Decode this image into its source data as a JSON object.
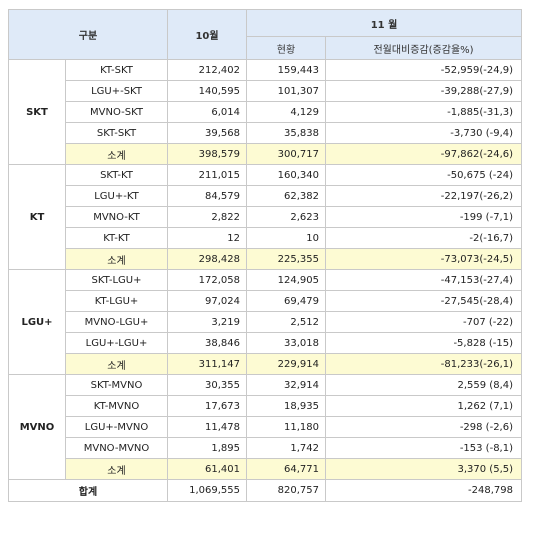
{
  "header": {
    "category": "구분",
    "october": "10월",
    "november": "11 월",
    "current": "현황",
    "change": "전월대비증감(증감율%)"
  },
  "groups": [
    {
      "name": "SKT",
      "rows": [
        {
          "label": "KT-SKT",
          "oct": "212,402",
          "nov": "159,443",
          "change": "-52,959(-24,9)"
        },
        {
          "label": "LGU+-SKT",
          "oct": "140,595",
          "nov": "101,307",
          "change": "-39,288(-27,9)"
        },
        {
          "label": "MVNO-SKT",
          "oct": "6,014",
          "nov": "4,129",
          "change": "-1,885(-31,3)"
        },
        {
          "label": "SKT-SKT",
          "oct": "39,568",
          "nov": "35,838",
          "change": "-3,730 (-9,4)"
        }
      ],
      "subtotal": {
        "label": "소계",
        "oct": "398,579",
        "nov": "300,717",
        "change": "-97,862(-24,6)"
      }
    },
    {
      "name": "KT",
      "rows": [
        {
          "label": "SKT-KT",
          "oct": "211,015",
          "nov": "160,340",
          "change": "-50,675 (-24)"
        },
        {
          "label": "LGU+-KT",
          "oct": "84,579",
          "nov": "62,382",
          "change": "-22,197(-26,2)"
        },
        {
          "label": "MVNO-KT",
          "oct": "2,822",
          "nov": "2,623",
          "change": "-199 (-7,1)"
        },
        {
          "label": "KT-KT",
          "oct": "12",
          "nov": "10",
          "change": "-2(-16,7)"
        }
      ],
      "subtotal": {
        "label": "소계",
        "oct": "298,428",
        "nov": "225,355",
        "change": "-73,073(-24,5)"
      }
    },
    {
      "name": "LGU+",
      "rows": [
        {
          "label": "SKT-LGU+",
          "oct": "172,058",
          "nov": "124,905",
          "change": "-47,153(-27,4)"
        },
        {
          "label": "KT-LGU+",
          "oct": "97,024",
          "nov": "69,479",
          "change": "-27,545(-28,4)"
        },
        {
          "label": "MVNO-LGU+",
          "oct": "3,219",
          "nov": "2,512",
          "change": "-707 (-22)"
        },
        {
          "label": "LGU+-LGU+",
          "oct": "38,846",
          "nov": "33,018",
          "change": "-5,828 (-15)"
        }
      ],
      "subtotal": {
        "label": "소계",
        "oct": "311,147",
        "nov": "229,914",
        "change": "-81,233(-26,1)"
      }
    },
    {
      "name": "MVNO",
      "rows": [
        {
          "label": "SKT-MVNO",
          "oct": "30,355",
          "nov": "32,914",
          "change": "2,559 (8,4)"
        },
        {
          "label": "KT-MVNO",
          "oct": "17,673",
          "nov": "18,935",
          "change": "1,262 (7,1)"
        },
        {
          "label": "LGU+-MVNO",
          "oct": "11,478",
          "nov": "11,180",
          "change": "-298 (-2,6)"
        },
        {
          "label": "MVNO-MVNO",
          "oct": "1,895",
          "nov": "1,742",
          "change": "-153 (-8,1)"
        }
      ],
      "subtotal": {
        "label": "소계",
        "oct": "61,401",
        "nov": "64,771",
        "change": "3,370 (5,5)"
      }
    }
  ],
  "total": {
    "label": "합계",
    "oct": "1,069,555",
    "nov": "820,757",
    "change": "-248,798"
  }
}
